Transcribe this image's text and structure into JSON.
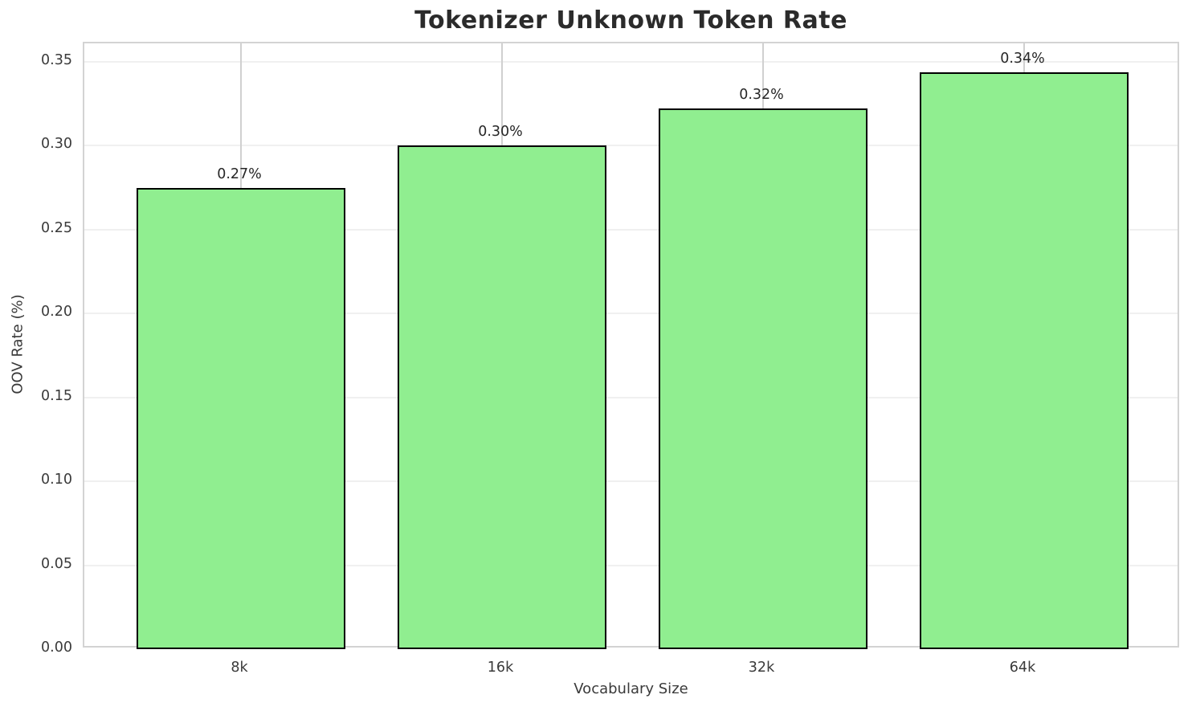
{
  "chart_data": {
    "type": "bar",
    "title": "Tokenizer Unknown Token Rate",
    "xlabel": "Vocabulary Size",
    "ylabel": "OOV Rate (%)",
    "categories": [
      "8k",
      "16k",
      "32k",
      "64k"
    ],
    "values": [
      0.275,
      0.3,
      0.322,
      0.344
    ],
    "bar_labels": [
      "0.27%",
      "0.30%",
      "0.32%",
      "0.34%"
    ],
    "ylim": [
      0,
      0.361
    ],
    "ytick_values": [
      0.0,
      0.05,
      0.1,
      0.15,
      0.2,
      0.25,
      0.3,
      0.35
    ],
    "ytick_labels": [
      "0.00",
      "0.05",
      "0.10",
      "0.15",
      "0.20",
      "0.25",
      "0.30",
      "0.35"
    ],
    "xlim": [
      -0.6,
      3.6
    ],
    "bar_width": 0.8,
    "grid": "both",
    "legend": "none",
    "colors": {
      "bar_fill": "#90ee90",
      "bar_edge": "#000000",
      "grid_horizontal": "#f0f0f0",
      "grid_vertical": "#d0d0d0",
      "spine": "#d3d3d3",
      "title_text": "#2b2b2b",
      "tick_text": "#3a3a3a",
      "label_text": "#262626",
      "background": "#ffffff"
    }
  }
}
